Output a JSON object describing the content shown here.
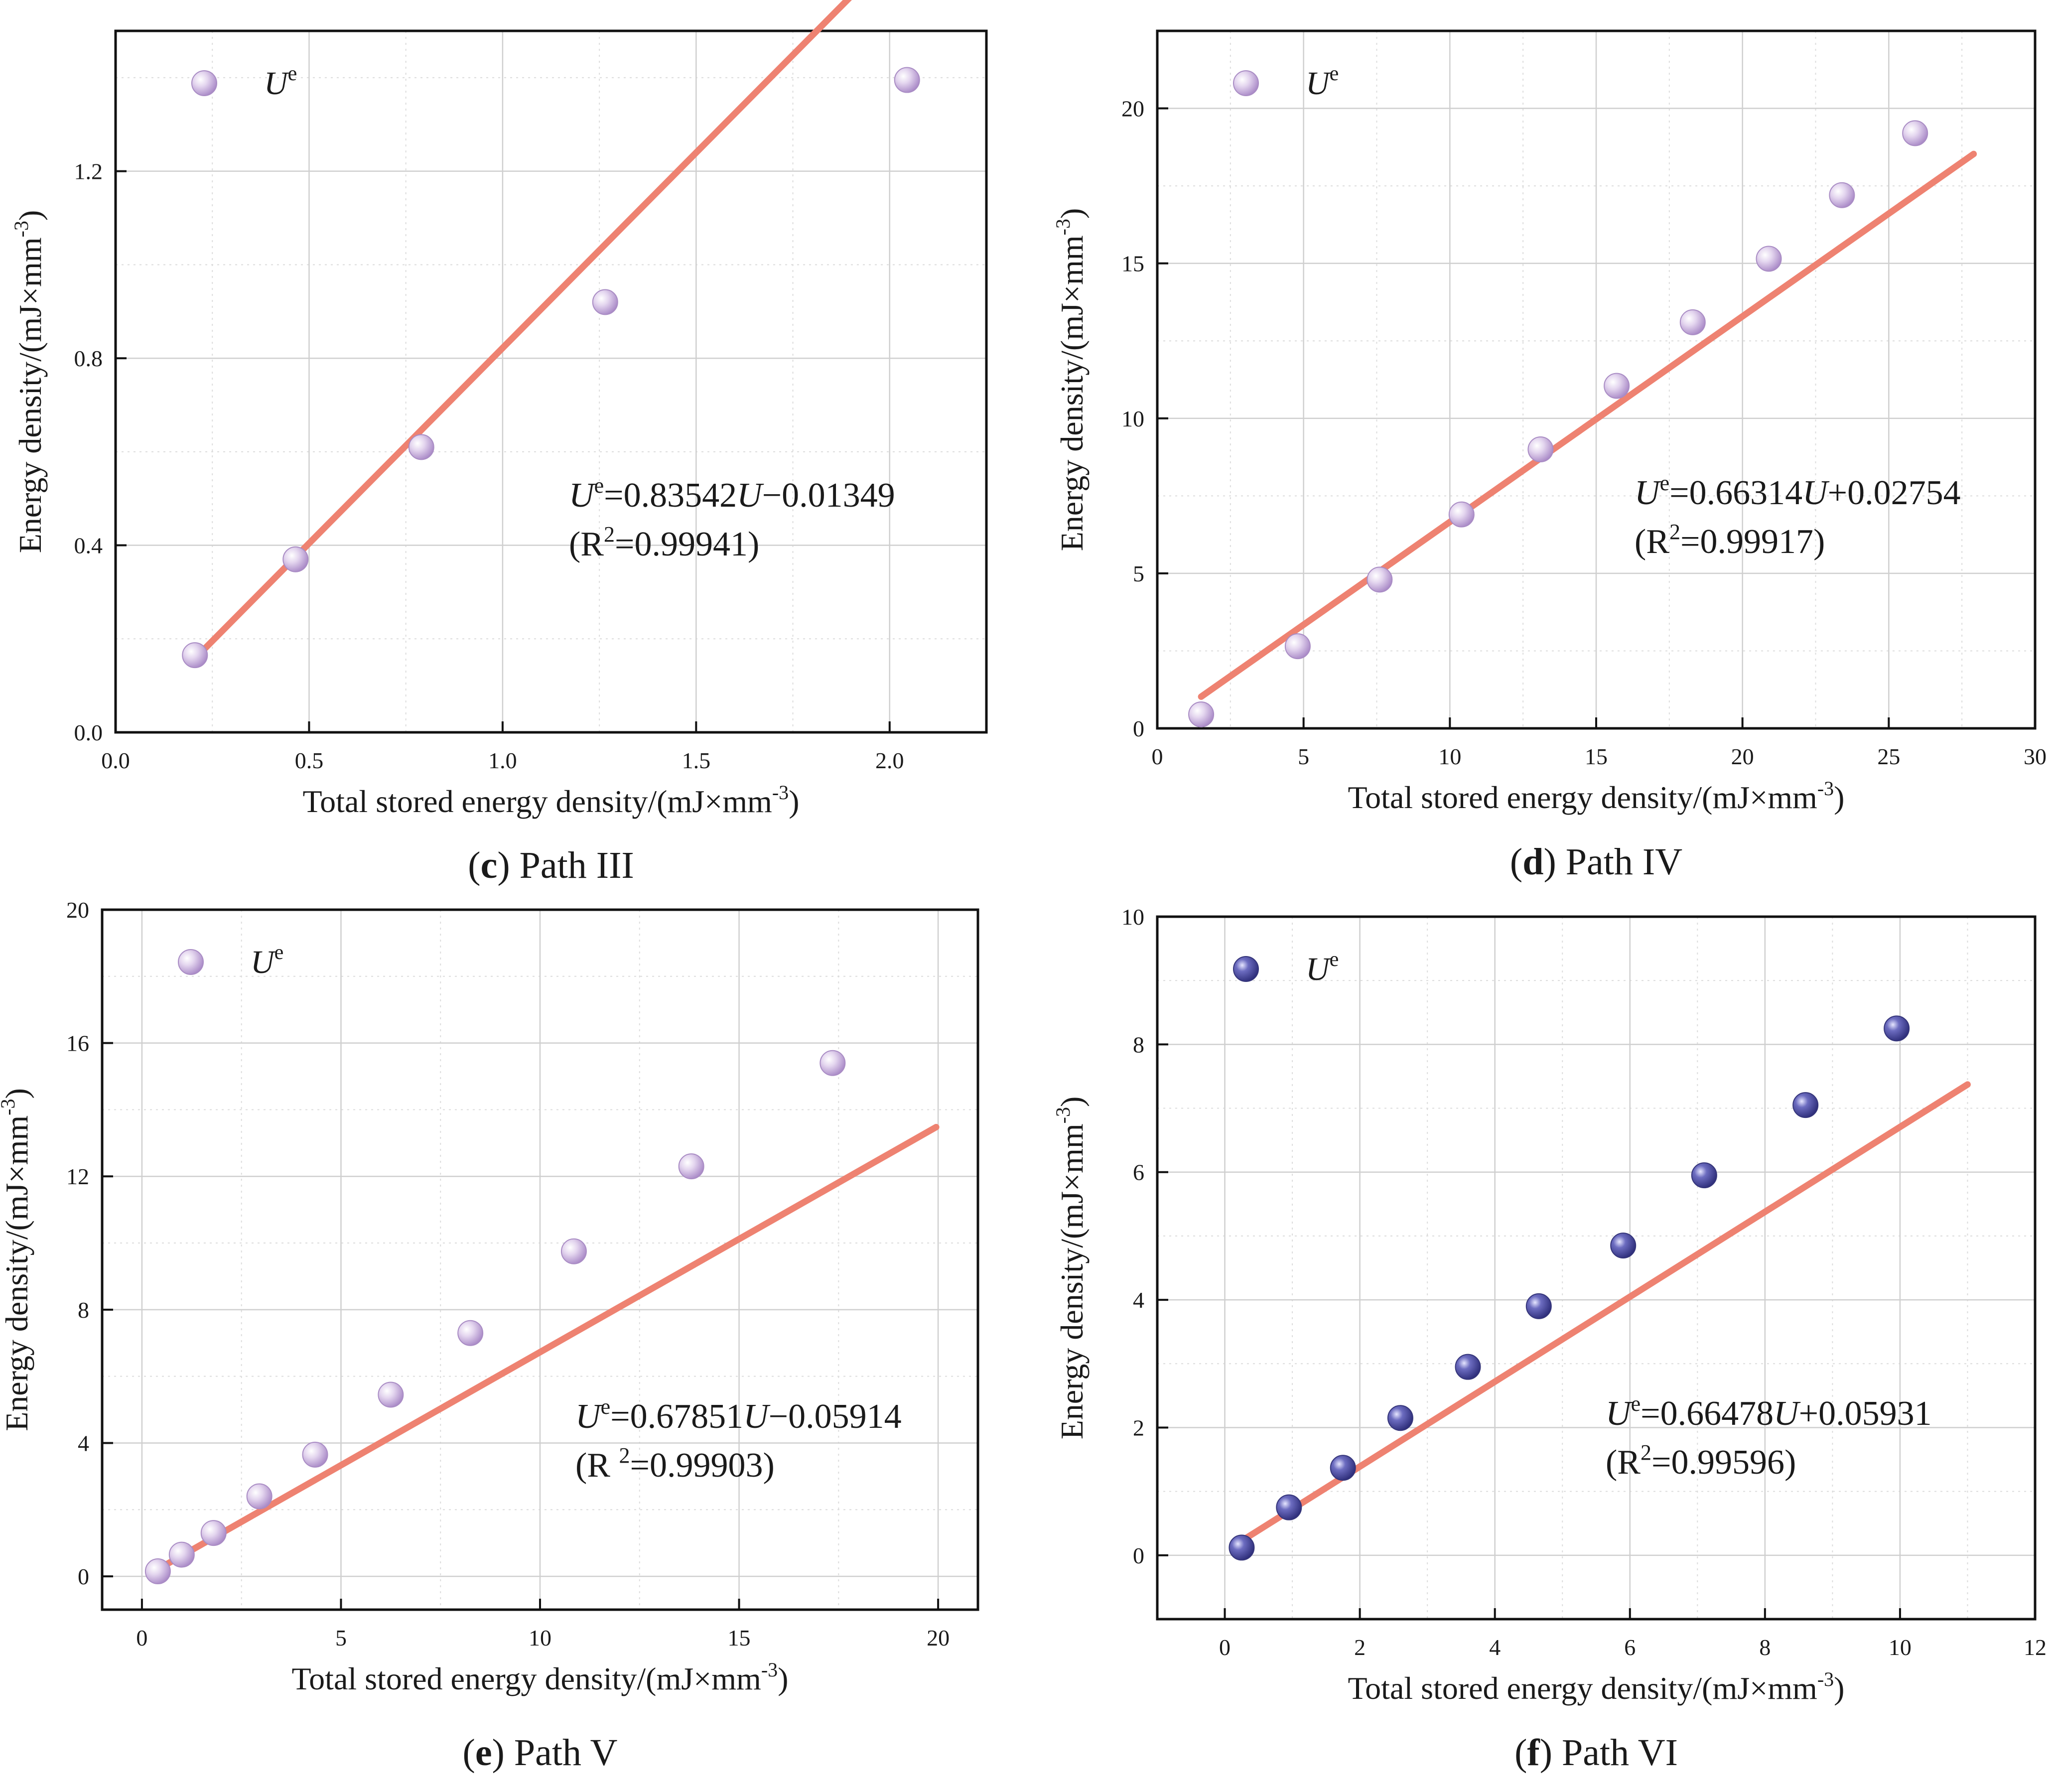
{
  "colors": {
    "fit_line": "#ee8271",
    "marker_light": "#cdb6e0",
    "marker_light_edge": "#a98cc4",
    "marker_dark": "#5a5aa8",
    "marker_dark_edge": "#35357a",
    "grid": "#cfcfcf",
    "frame": "#111111"
  },
  "chart_data": [
    {
      "type": "scatter",
      "panel_letter": "c",
      "panel_title": "Path III",
      "xlabel": "Total stored energy density/(mJ×mm",
      "ylabel": "Energy density/(mJ×mm",
      "unit_exponent": "-3",
      "xlim": [
        0,
        2.25
      ],
      "ylim": [
        0,
        1.5
      ],
      "xticks": [
        "0.0",
        "0.5",
        "1.0",
        "1.5",
        "2.0"
      ],
      "yticks": [
        "0.0",
        "0.4",
        "0.8",
        "1.2"
      ],
      "legend": {
        "symbol": "U",
        "superscript": "e",
        "placement": "top-left"
      },
      "marker_style": "light",
      "points": [
        [
          0.205,
          0.165
        ],
        [
          0.465,
          0.37
        ],
        [
          0.79,
          0.61
        ],
        [
          1.265,
          0.92
        ],
        [
          2.045,
          1.395
        ]
      ],
      "fit": {
        "slope": 0.83542,
        "intercept": -0.01349,
        "x_range": [
          0.21,
          2.05
        ]
      },
      "equation": {
        "lhs": "U",
        "lhs_sup": "e",
        "rest": "=0.83542",
        "var": "U",
        "tail": "−0.01349",
        "r2_open": "(R",
        "r2_sup": "2",
        "r2_close": "=0.99941)"
      }
    },
    {
      "type": "scatter",
      "panel_letter": "d",
      "panel_title": "Path IV",
      "xlabel": "Total stored energy density/(mJ×mm",
      "ylabel": "Energy density/(mJ×mm",
      "unit_exponent": "-3",
      "xlim": [
        0,
        30
      ],
      "ylim": [
        0,
        22.5
      ],
      "xticks": [
        "0",
        "5",
        "10",
        "15",
        "20",
        "25",
        "30"
      ],
      "yticks": [
        "0",
        "5",
        "10",
        "15",
        "20"
      ],
      "legend": {
        "symbol": "U",
        "superscript": "e",
        "placement": "top-left"
      },
      "marker_style": "light",
      "points": [
        [
          1.5,
          0.45
        ],
        [
          4.8,
          2.65
        ],
        [
          7.6,
          4.8
        ],
        [
          10.4,
          6.9
        ],
        [
          13.1,
          9.0
        ],
        [
          15.7,
          11.05
        ],
        [
          18.3,
          13.1
        ],
        [
          20.9,
          15.15
        ],
        [
          23.4,
          17.2
        ],
        [
          25.9,
          19.2
        ]
      ],
      "fit": {
        "slope": 0.66314,
        "intercept": 0.02754,
        "x_range": [
          1.5,
          27.9
        ]
      },
      "equation": {
        "lhs": "U",
        "lhs_sup": "e",
        "rest": "=0.66314",
        "var": "U",
        "tail": "+0.02754",
        "r2_open": "(R",
        "r2_sup": "2",
        "r2_close": "=0.99917)"
      }
    },
    {
      "type": "scatter",
      "panel_letter": "e",
      "panel_title": "Path V",
      "xlabel": "Total stored energy density/(mJ×mm",
      "ylabel": "Energy density/(mJ×mm",
      "unit_exponent": "-3",
      "xlim": [
        -1,
        21
      ],
      "ylim": [
        -1,
        20
      ],
      "xticks": [
        "0",
        "5",
        "10",
        "15",
        "20"
      ],
      "yticks": [
        "0",
        "4",
        "8",
        "12",
        "16",
        "20"
      ],
      "legend": {
        "symbol": "U",
        "superscript": "e",
        "placement": "top-left"
      },
      "marker_style": "light",
      "points": [
        [
          0.4,
          0.15
        ],
        [
          1.0,
          0.65
        ],
        [
          1.8,
          1.3
        ],
        [
          2.95,
          2.4
        ],
        [
          4.35,
          3.65
        ],
        [
          6.25,
          5.45
        ],
        [
          8.25,
          7.3
        ],
        [
          10.85,
          9.75
        ],
        [
          13.8,
          12.3
        ],
        [
          17.35,
          15.4
        ]
      ],
      "fit": {
        "slope": 0.67851,
        "intercept": -0.05914,
        "x_range": [
          0.4,
          19.95
        ]
      },
      "equation": {
        "lhs": "U",
        "lhs_sup": "e",
        "rest": "=0.67851",
        "var": "U",
        "tail": "−0.05914",
        "r2_open": "(R ",
        "r2_sup": "2",
        "r2_close": "=0.99903)"
      }
    },
    {
      "type": "scatter",
      "panel_letter": "f",
      "panel_title": "Path VI",
      "xlabel": "Total stored energy density/(mJ×mm",
      "ylabel": "Energy density/(mJ×mm",
      "unit_exponent": "-3",
      "xlim": [
        -1,
        12
      ],
      "ylim": [
        -1,
        10
      ],
      "xticks": [
        "0",
        "2",
        "4",
        "6",
        "8",
        "10",
        "12"
      ],
      "yticks": [
        "0",
        "2",
        "4",
        "6",
        "8",
        "10"
      ],
      "legend": {
        "symbol": "U",
        "superscript": "e",
        "placement": "top-left"
      },
      "marker_style": "dark",
      "points": [
        [
          0.25,
          0.12
        ],
        [
          0.95,
          0.75
        ],
        [
          1.75,
          1.37
        ],
        [
          2.6,
          2.15
        ],
        [
          3.6,
          2.95
        ],
        [
          4.65,
          3.9
        ],
        [
          5.9,
          4.85
        ],
        [
          7.1,
          5.95
        ],
        [
          8.6,
          7.05
        ],
        [
          9.95,
          8.25
        ]
      ],
      "fit": {
        "slope": 0.66478,
        "intercept": 0.05931,
        "x_range": [
          0.2,
          11.0
        ]
      },
      "equation": {
        "lhs": "U",
        "lhs_sup": "e",
        "rest": "=0.66478",
        "var": "U",
        "tail": "+0.05931",
        "r2_open": "(R",
        "r2_sup": "2",
        "r2_close": "=0.99596)"
      }
    }
  ]
}
